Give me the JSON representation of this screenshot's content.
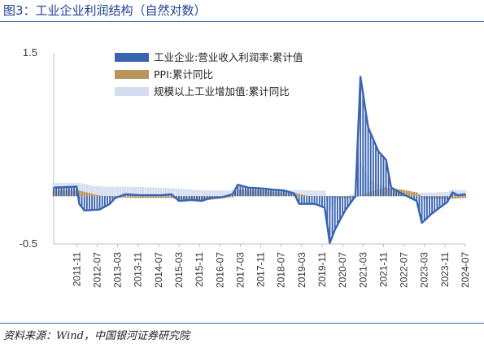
{
  "header": {
    "figure_title": "图3：工业企业利润结构（自然对数）"
  },
  "footer": {
    "source": "资料来源：Wind，中国银河证券研究院"
  },
  "colors": {
    "profit": "#3a64b0",
    "ppi": "#b9955e",
    "ip": "#d2deef",
    "axis": "#bfbfbf",
    "title": "#1f3f8f"
  },
  "chart_data": {
    "type": "bar",
    "title": "",
    "xlabel": "",
    "ylabel": "",
    "ylim": [
      -0.5,
      1.5
    ],
    "y_ticks": [
      "1.5",
      "-0.5"
    ],
    "x_tick_labels": [
      "2011-11",
      "2012-07",
      "2013-03",
      "2013-11",
      "2014-07",
      "2015-03",
      "2015-11",
      "2016-07",
      "2017-03",
      "2017-11",
      "2018-07",
      "2019-03",
      "2019-11",
      "2020-07",
      "2021-03",
      "2021-11",
      "2022-07",
      "2023-03",
      "2023-11",
      "2024-07"
    ],
    "legend_position": "top",
    "grid": false,
    "series": [
      {
        "name": "工业企业:营业收入利润率:累计值",
        "style": "line",
        "points": [
          [
            "2011-02",
            0.09
          ],
          [
            "2011-11",
            0.1
          ],
          [
            "2011-12",
            -0.08
          ],
          [
            "2012-02",
            -0.15
          ],
          [
            "2012-08",
            -0.14
          ],
          [
            "2012-12",
            -0.08
          ],
          [
            "2013-02",
            -0.02
          ],
          [
            "2013-06",
            0.02
          ],
          [
            "2013-12",
            0.01
          ],
          [
            "2014-08",
            0.01
          ],
          [
            "2014-12",
            0.02
          ],
          [
            "2015-03",
            -0.05
          ],
          [
            "2015-08",
            -0.04
          ],
          [
            "2015-12",
            -0.05
          ],
          [
            "2016-03",
            -0.02
          ],
          [
            "2016-08",
            -0.01
          ],
          [
            "2016-12",
            0.02
          ],
          [
            "2017-02",
            0.12
          ],
          [
            "2017-06",
            0.09
          ],
          [
            "2017-12",
            0.08
          ],
          [
            "2018-03",
            0.07
          ],
          [
            "2018-08",
            0.06
          ],
          [
            "2018-12",
            0.03
          ],
          [
            "2019-02",
            -0.08
          ],
          [
            "2019-08",
            -0.08
          ],
          [
            "2019-12",
            -0.12
          ],
          [
            "2020-02",
            -0.49
          ],
          [
            "2020-04",
            -0.35
          ],
          [
            "2020-08",
            -0.15
          ],
          [
            "2020-12",
            0.0
          ],
          [
            "2021-02",
            1.25
          ],
          [
            "2021-05",
            0.72
          ],
          [
            "2021-09",
            0.47
          ],
          [
            "2021-12",
            0.38
          ],
          [
            "2022-02",
            0.09
          ],
          [
            "2022-06",
            0.03
          ],
          [
            "2022-12",
            -0.05
          ],
          [
            "2023-02",
            -0.28
          ],
          [
            "2023-06",
            -0.18
          ],
          [
            "2023-12",
            -0.06
          ],
          [
            "2024-02",
            0.04
          ],
          [
            "2024-04",
            0.01
          ],
          [
            "2024-07",
            0.02
          ]
        ]
      },
      {
        "name": "PPI:累计同比",
        "style": "bar",
        "points": [
          [
            "2011-02",
            0.06
          ],
          [
            "2011-12",
            0.06
          ],
          [
            "2012-06",
            0.02
          ],
          [
            "2012-12",
            -0.015
          ],
          [
            "2013-12",
            -0.02
          ],
          [
            "2014-12",
            -0.02
          ],
          [
            "2015-06",
            -0.05
          ],
          [
            "2015-12",
            -0.05
          ],
          [
            "2016-06",
            -0.03
          ],
          [
            "2016-12",
            -0.01
          ],
          [
            "2017-02",
            0.07
          ],
          [
            "2017-08",
            0.065
          ],
          [
            "2017-12",
            0.06
          ],
          [
            "2018-06",
            0.04
          ],
          [
            "2018-12",
            0.035
          ],
          [
            "2019-06",
            0.0
          ],
          [
            "2019-12",
            -0.005
          ],
          [
            "2020-06",
            -0.02
          ],
          [
            "2020-12",
            -0.02
          ],
          [
            "2021-03",
            0.02
          ],
          [
            "2021-11",
            0.09
          ],
          [
            "2022-03",
            0.08
          ],
          [
            "2022-07",
            0.065
          ],
          [
            "2022-12",
            0.04
          ],
          [
            "2023-03",
            -0.03
          ],
          [
            "2023-12",
            -0.03
          ],
          [
            "2024-07",
            -0.02
          ]
        ]
      },
      {
        "name": "规模以上工业增加值:累计同比",
        "style": "bar",
        "points": [
          [
            "2011-02",
            0.14
          ],
          [
            "2011-12",
            0.14
          ],
          [
            "2012-06",
            0.105
          ],
          [
            "2012-12",
            0.1
          ],
          [
            "2013-12",
            0.097
          ],
          [
            "2014-12",
            0.083
          ],
          [
            "2015-12",
            0.061
          ],
          [
            "2016-12",
            0.06
          ],
          [
            "2017-12",
            0.066
          ],
          [
            "2018-12",
            0.062
          ],
          [
            "2019-12",
            0.057
          ],
          [
            "2020-02",
            -0.135
          ],
          [
            "2020-06",
            -0.013
          ],
          [
            "2020-12",
            0.028
          ],
          [
            "2021-02",
            0.35
          ],
          [
            "2021-06",
            0.159
          ],
          [
            "2021-12",
            0.096
          ],
          [
            "2022-06",
            0.034
          ],
          [
            "2022-12",
            0.036
          ],
          [
            "2023-06",
            0.038
          ],
          [
            "2023-12",
            0.046
          ],
          [
            "2024-02",
            0.07
          ],
          [
            "2024-07",
            0.059
          ]
        ]
      }
    ]
  }
}
